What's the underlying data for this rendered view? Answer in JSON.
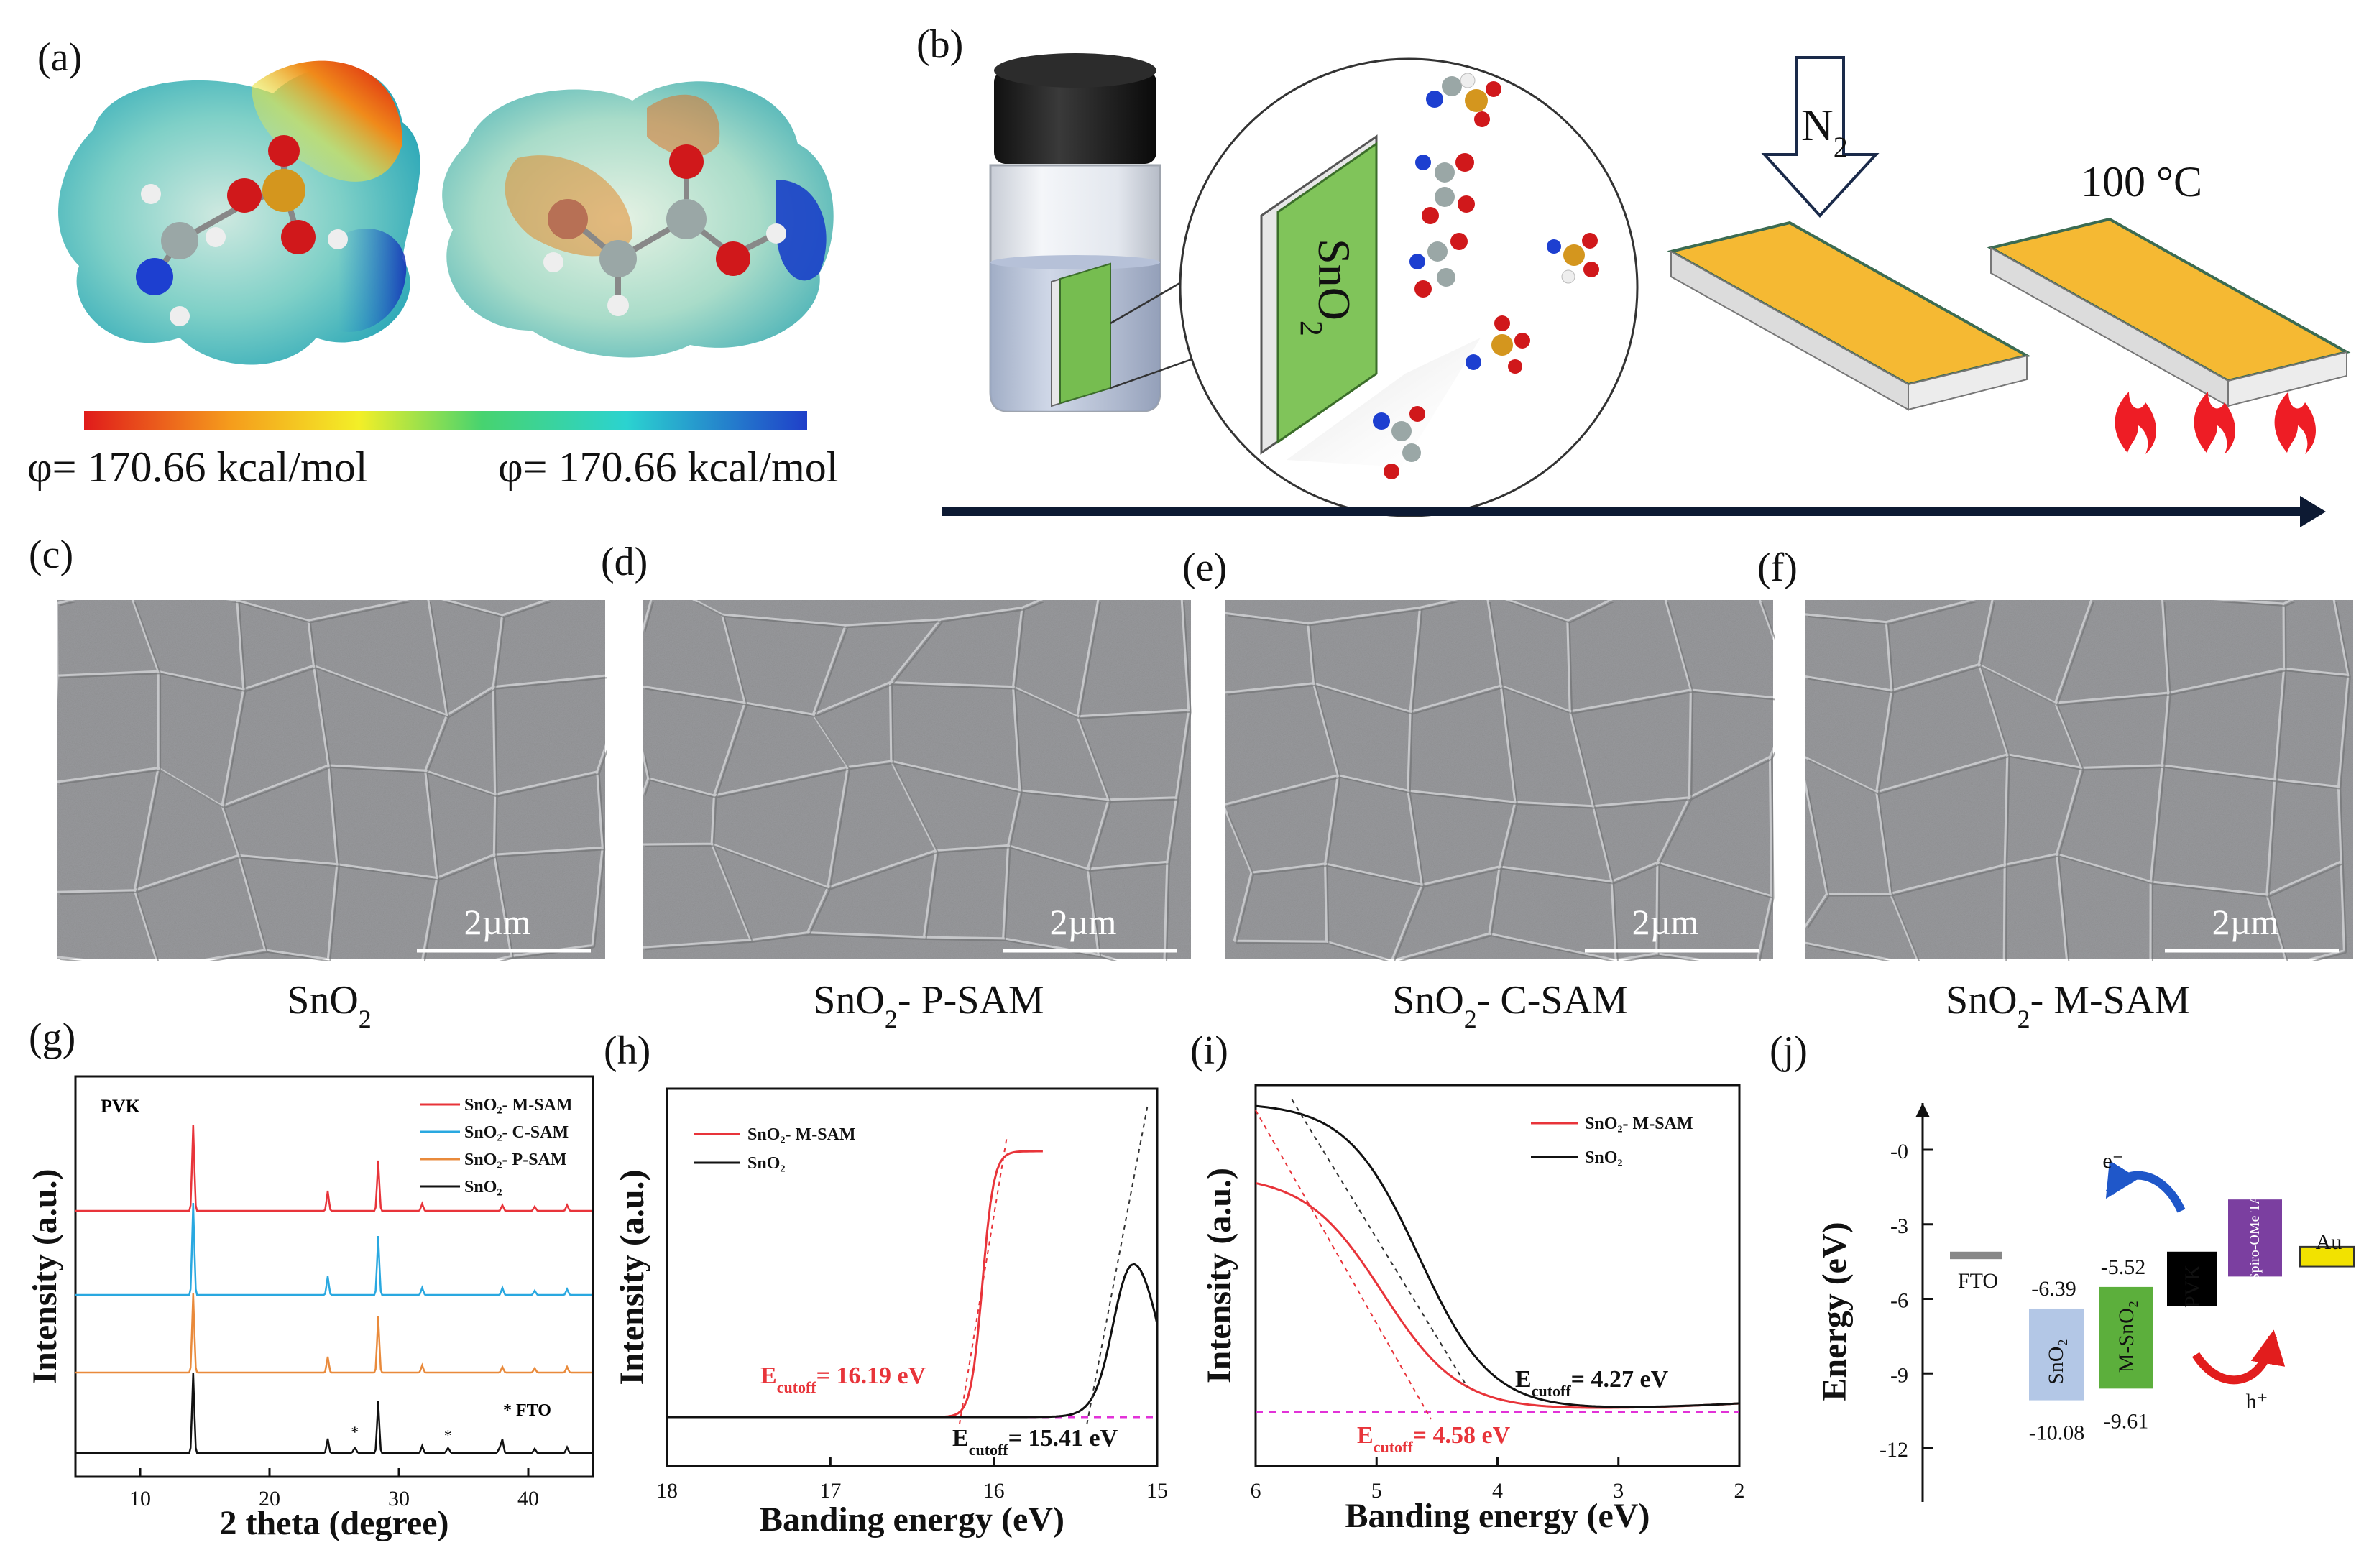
{
  "panel_labels": [
    "(a)",
    "(b)",
    "(c)",
    "(d)",
    "(e)",
    "(f)",
    "(g)",
    "(h)",
    "(i)",
    "(j)"
  ],
  "panel_a": {
    "potential_left": "φ= 170.66 kcal/mol",
    "potential_right": "φ= 170.66 kcal/mol"
  },
  "panel_b": {
    "substrate_label": "SnO",
    "substrate_sub": "2",
    "gas_label": "N",
    "gas_sub": "2",
    "temp_label": "100 °C"
  },
  "sem_panels": [
    {
      "scale": "2µm",
      "caption": "SnO",
      "caption_sub": "2",
      "caption_suffix": ""
    },
    {
      "scale": "2µm",
      "caption": "SnO",
      "caption_sub": "2",
      "caption_suffix": "- P-SAM"
    },
    {
      "scale": "2µm",
      "caption": "SnO",
      "caption_sub": "2",
      "caption_suffix": "- C-SAM"
    },
    {
      "scale": "2µm",
      "caption": "SnO",
      "caption_sub": "2",
      "caption_suffix": "- M-SAM"
    }
  ],
  "chart_data": [
    {
      "panel": "(g)",
      "type": "line",
      "xlabel": "2 theta (degree)",
      "ylabel": "Intensity (a.u.)",
      "xlim": [
        5,
        45
      ],
      "xticks": [
        10,
        20,
        30,
        40
      ],
      "annotations": [
        "PVK",
        "* FTO"
      ],
      "peaks_2theta": [
        14.1,
        24.5,
        28.4,
        31.8,
        38.0,
        40.5,
        43.0
      ],
      "fto_peaks_2theta": [
        26.6,
        33.8,
        37.8
      ],
      "series": [
        {
          "name": "SnO₂- M-SAM",
          "color": "#e8343a"
        },
        {
          "name": "SnO₂- C-SAM",
          "color": "#29a8e0"
        },
        {
          "name": "SnO₂- P-SAM",
          "color": "#e98a3b"
        },
        {
          "name": "SnO₂",
          "color": "#111111"
        }
      ]
    },
    {
      "panel": "(h)",
      "type": "line",
      "xlabel": "Banding energy (eV)",
      "ylabel": "Intensity (a.u.)",
      "xlim": [
        18,
        15
      ],
      "xticks": [
        18,
        17,
        16,
        15
      ],
      "series": [
        {
          "name": "SnO₂- M-SAM",
          "color": "#e8343a",
          "cutoff_label": "E",
          "cutoff_sub": "cutoff",
          "cutoff_value": "= 16.19 eV",
          "cutoff": 16.19
        },
        {
          "name": "SnO₂",
          "color": "#111111",
          "cutoff_label": "E",
          "cutoff_sub": "cutoff",
          "cutoff_value": "= 15.41 eV",
          "cutoff": 15.41
        }
      ]
    },
    {
      "panel": "(i)",
      "type": "line",
      "xlabel": "Banding energy (eV)",
      "ylabel": "Intensity (a.u.)",
      "xlim": [
        6,
        2
      ],
      "xticks": [
        6,
        5,
        4,
        3,
        2
      ],
      "series": [
        {
          "name": "SnO₂- M-SAM",
          "color": "#e8343a",
          "cutoff_label": "E",
          "cutoff_sub": "cutoff",
          "cutoff_value": "= 4.58 eV",
          "cutoff": 4.58
        },
        {
          "name": "SnO₂",
          "color": "#111111",
          "cutoff_label": "E",
          "cutoff_sub": "cutoff",
          "cutoff_value": "= 4.27 eV",
          "cutoff": 4.27
        }
      ]
    },
    {
      "panel": "(j)",
      "type": "bar",
      "ylabel": "Energy (eV)",
      "ylim": [
        -13.5,
        0.8
      ],
      "yticks": [
        "-0",
        "-3",
        "-6",
        "-9",
        "-12"
      ],
      "ytick_values": [
        0,
        -3,
        -6,
        -9,
        -12
      ],
      "levels": [
        {
          "name": "FTO",
          "top": -4.1,
          "bottom": -4.4,
          "color": "#888888",
          "label_top": "",
          "label_bottom": ""
        },
        {
          "name": "SnO₂",
          "top": -6.39,
          "bottom": -10.08,
          "color": "#b3c7e6",
          "label_top": "-6.39",
          "label_bottom": "-10.08"
        },
        {
          "name": "M-SnO₂",
          "top": -5.52,
          "bottom": -9.61,
          "color": "#5caf3c",
          "label_top": "-5.52",
          "label_bottom": "-9.61"
        },
        {
          "name": "PVK",
          "top": -4.1,
          "bottom": -6.3,
          "color": "#000000",
          "label_top": "",
          "label_bottom": ""
        },
        {
          "name": "Spiro-OMe TAD",
          "top": -2.0,
          "bottom": -5.1,
          "color": "#7b3fa0",
          "label_top": "",
          "label_bottom": ""
        },
        {
          "name": "Au",
          "top": -3.9,
          "bottom": -4.7,
          "color": "#f2e200",
          "label_top": "",
          "label_bottom": ""
        }
      ],
      "carrier_labels": {
        "electron": "e⁻",
        "hole": "h⁺"
      }
    }
  ]
}
